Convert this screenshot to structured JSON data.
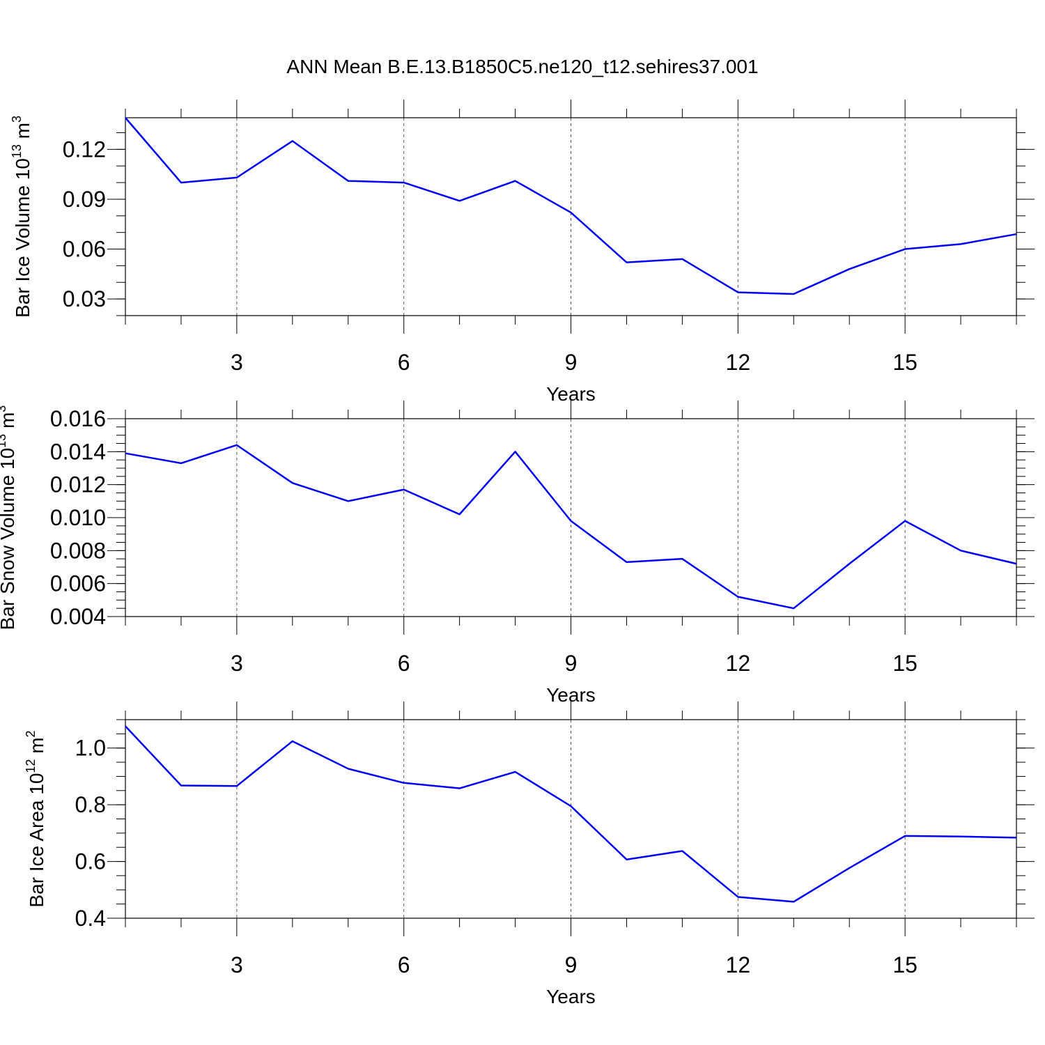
{
  "title": "ANN Mean B.E.13.B1850C5.ne120_t12.sehires37.001",
  "line_color": "#0000ff",
  "chart_data": [
    {
      "type": "line",
      "title": "ANN Mean B.E.13.B1850C5.ne120_t12.sehires37.001",
      "ylabel_main": "Bar Ice Volume 10",
      "ylabel_exp": "13",
      "ylabel_unit": " m",
      "ylabel_unit_exp": "3",
      "xlabel": "Years",
      "xlim": [
        1,
        17
      ],
      "ylim": [
        0.02,
        0.139
      ],
      "xticks": [
        3,
        6,
        9,
        12,
        15
      ],
      "xtick_labels": [
        "3",
        "6",
        "9",
        "12",
        "15"
      ],
      "yticks": [
        0.03,
        0.06,
        0.09,
        0.12
      ],
      "ytick_labels": [
        "0.03",
        "0.06",
        "0.09",
        "0.12"
      ],
      "y_minor_step": 0.01,
      "grid": "vertical-dashed",
      "x": [
        1,
        2,
        3,
        4,
        5,
        6,
        7,
        8,
        9,
        10,
        11,
        12,
        13,
        14,
        15,
        16,
        17
      ],
      "series": [
        {
          "values": [
            0.139,
            0.1,
            0.103,
            0.125,
            0.101,
            0.1,
            0.089,
            0.101,
            0.082,
            0.052,
            0.054,
            0.034,
            0.033,
            0.048,
            0.06,
            0.063,
            0.069
          ]
        }
      ]
    },
    {
      "type": "line",
      "ylabel_main": "Bar Snow Volume 10",
      "ylabel_exp": "13",
      "ylabel_unit": " m",
      "ylabel_unit_exp": "3",
      "xlabel": "Years",
      "xlim": [
        1,
        17
      ],
      "ylim": [
        0.004,
        0.016
      ],
      "xticks": [
        3,
        6,
        9,
        12,
        15
      ],
      "xtick_labels": [
        "3",
        "6",
        "9",
        "12",
        "15"
      ],
      "yticks": [
        0.004,
        0.006,
        0.008,
        0.01,
        0.012,
        0.014,
        0.016
      ],
      "ytick_labels": [
        "0.004",
        "0.006",
        "0.008",
        "0.010",
        "0.012",
        "0.014",
        "0.016"
      ],
      "y_minor_step": 0.0005,
      "grid": "vertical-dashed",
      "x": [
        1,
        2,
        3,
        4,
        5,
        6,
        7,
        8,
        9,
        10,
        11,
        12,
        13,
        14,
        15,
        16,
        17
      ],
      "series": [
        {
          "values": [
            0.0139,
            0.0133,
            0.0144,
            0.0121,
            0.011,
            0.0117,
            0.0102,
            0.014,
            0.0098,
            0.0073,
            0.0075,
            0.0052,
            0.0045,
            0.0072,
            0.0098,
            0.008,
            0.0072
          ]
        }
      ]
    },
    {
      "type": "line",
      "ylabel_main": "Bar Ice Area 10",
      "ylabel_exp": "12",
      "ylabel_unit": " m",
      "ylabel_unit_exp": "2",
      "xlabel": "Years",
      "xlim": [
        1,
        17
      ],
      "ylim": [
        0.4,
        1.1
      ],
      "xticks": [
        3,
        6,
        9,
        12,
        15
      ],
      "xtick_labels": [
        "3",
        "6",
        "9",
        "12",
        "15"
      ],
      "yticks": [
        0.4,
        0.6,
        0.8,
        1.0
      ],
      "ytick_labels": [
        "0.4",
        "0.6",
        "0.8",
        "1.0"
      ],
      "y_minor_step": 0.05,
      "grid": "vertical-dashed",
      "x": [
        1,
        2,
        3,
        4,
        5,
        6,
        7,
        8,
        9,
        10,
        11,
        12,
        13,
        14,
        15,
        16,
        17
      ],
      "series": [
        {
          "values": [
            1.077,
            0.868,
            0.866,
            1.024,
            0.927,
            0.877,
            0.858,
            0.916,
            0.795,
            0.607,
            0.637,
            0.475,
            0.458,
            0.577,
            0.69,
            0.688,
            0.684
          ]
        }
      ]
    }
  ]
}
